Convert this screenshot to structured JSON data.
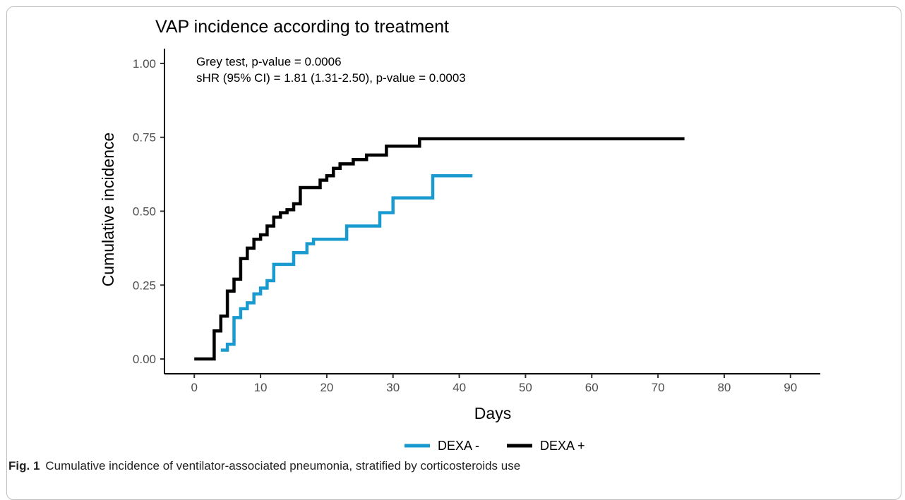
{
  "caption": {
    "label": "Fig. 1",
    "text": "Cumulative incidence of ventilator-associated pneumonia, stratified by corticosteroids use"
  },
  "chart_data": {
    "type": "line",
    "step": true,
    "title": "VAP incidence according to treatment",
    "xlabel": "Days",
    "ylabel": "Cumulative incidence",
    "xlim": [
      -4.5,
      94.5
    ],
    "ylim": [
      -0.05,
      1.05
    ],
    "xticks": [
      0,
      10,
      20,
      30,
      40,
      50,
      60,
      70,
      80,
      90
    ],
    "yticks": [
      0.0,
      0.25,
      0.5,
      0.75,
      1.0
    ],
    "ytick_labels": [
      "0.00",
      "0.25",
      "0.50",
      "0.75",
      "1.00"
    ],
    "grid": false,
    "annotations": [
      "Grey test, p-value = 0.0006",
      "sHR (95% CI) = 1.81 (1.31-2.50), p-value = 0.0003"
    ],
    "legend_position": "bottom",
    "series": [
      {
        "name": "DEXA -",
        "color": "#1a9bd0",
        "x": [
          4,
          5,
          6,
          7,
          8,
          9,
          10,
          11,
          12,
          15,
          17,
          18,
          23,
          28,
          30,
          36,
          42
        ],
        "y": [
          0.03,
          0.05,
          0.14,
          0.17,
          0.19,
          0.22,
          0.24,
          0.265,
          0.32,
          0.36,
          0.39,
          0.405,
          0.45,
          0.495,
          0.545,
          0.62,
          0.62
        ]
      },
      {
        "name": "DEXA +",
        "color": "#000000",
        "x": [
          0,
          3,
          4,
          5,
          6,
          7,
          8,
          9,
          10,
          11,
          12,
          13,
          14,
          15,
          16,
          19,
          20,
          21,
          22,
          24,
          26,
          29,
          34,
          74
        ],
        "y": [
          0.0,
          0.095,
          0.145,
          0.23,
          0.27,
          0.34,
          0.375,
          0.405,
          0.42,
          0.45,
          0.48,
          0.495,
          0.505,
          0.525,
          0.58,
          0.605,
          0.62,
          0.645,
          0.66,
          0.675,
          0.69,
          0.72,
          0.745,
          0.745
        ]
      }
    ]
  }
}
